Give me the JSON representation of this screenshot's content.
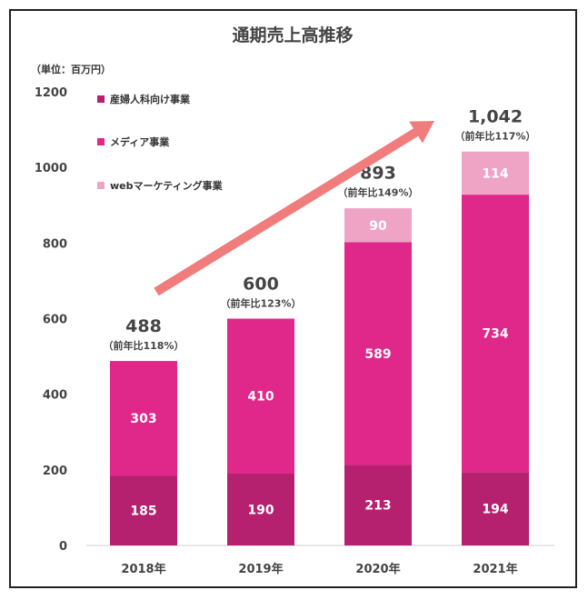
{
  "chart_data": {
    "type": "bar",
    "stacked": true,
    "title": "通期売上高推移",
    "unit_label": "（単位：百万円）",
    "categories": [
      "2018年",
      "2019年",
      "2020年",
      "2021年"
    ],
    "ylim": [
      0,
      1200
    ],
    "yticks": [
      "0",
      "200",
      "400",
      "600",
      "800",
      "1000",
      "1200"
    ],
    "legend_position": "top-left",
    "series": [
      {
        "name": "産婦人科向け事業",
        "color": "#b5206f",
        "values": [
          185,
          190,
          213,
          194
        ],
        "labels": [
          "185",
          "190",
          "213",
          "194"
        ]
      },
      {
        "name": "メディア事業",
        "color": "#e0278a",
        "values": [
          303,
          410,
          589,
          734
        ],
        "labels": [
          "303",
          "410",
          "589",
          "734"
        ]
      },
      {
        "name": "webマーケティング事業",
        "color": "#efa4c6",
        "values": [
          0,
          0,
          90,
          114
        ],
        "labels": [
          "",
          "",
          "90",
          "114"
        ]
      }
    ],
    "totals": [
      "488",
      "600",
      "893",
      "1,042"
    ],
    "yoy": [
      "（前年比118%）",
      "（前年比123%）",
      "（前年比149%）",
      "（前年比117%）"
    ],
    "total_values": [
      488,
      600,
      893,
      1042
    ],
    "arrow_color": "#f07c7c",
    "grid": false
  }
}
